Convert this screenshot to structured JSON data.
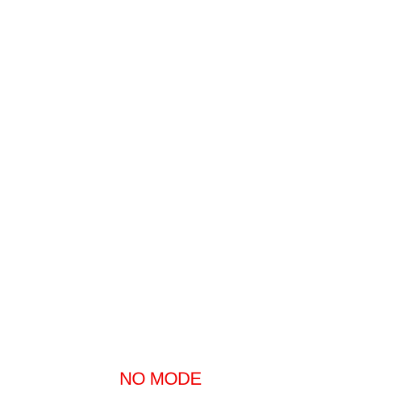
{
  "status": {
    "mode_label": "NO MODE",
    "mode_color": "#ee0000"
  },
  "background_color": "#ffffff"
}
